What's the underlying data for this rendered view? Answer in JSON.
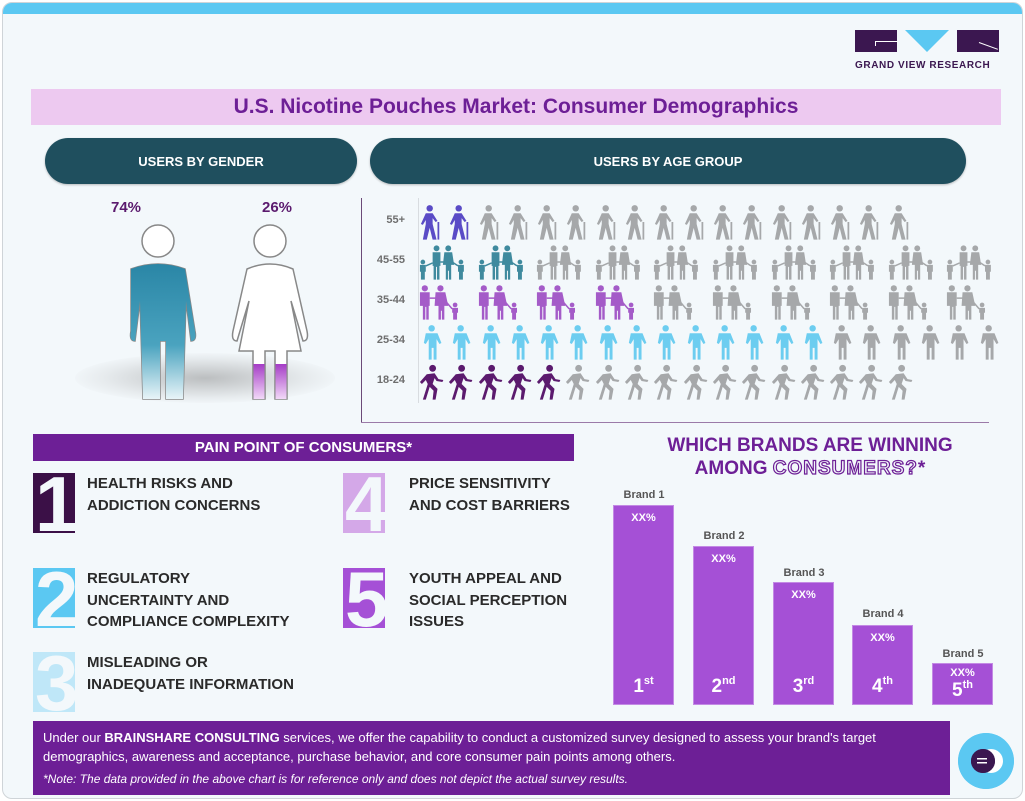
{
  "brand": {
    "name": "GRAND VIEW RESEARCH",
    "logo_icon": "gvr-logo-icon"
  },
  "title": "U.S. Nicotine Pouches Market: Consumer Demographics",
  "gender": {
    "header": "USERS BY GENDER",
    "male": {
      "label": "74%",
      "value": 74,
      "color": "#2b8aa8",
      "icon": "male-figure-icon"
    },
    "female": {
      "label": "26%",
      "value": 26,
      "color": "#b04fd0",
      "icon": "female-figure-icon"
    }
  },
  "age": {
    "header": "USERS BY AGE GROUP",
    "rows": [
      {
        "label": "55+",
        "filled": 2,
        "total": 17,
        "color": "#5a4bc6",
        "icon": "elderly-with-cane-icon"
      },
      {
        "label": "45-55",
        "filled": 2,
        "total": 10,
        "color": "#3f8a9e",
        "icon": "family-icon"
      },
      {
        "label": "35-44",
        "filled": 4,
        "total": 10,
        "color": "#a45bc8",
        "icon": "parents-with-child-icon"
      },
      {
        "label": "25-34",
        "filled": 14,
        "total": 20,
        "color": "#6ccdf0",
        "icon": "couple-icon"
      },
      {
        "label": "18-24",
        "filled": 5,
        "total": 17,
        "color": "#5b1a6e",
        "icon": "running-person-icon"
      }
    ]
  },
  "pain_points": {
    "header": "PAIN POINT OF CONSUMERS*",
    "items": [
      {
        "number": "1",
        "text": "HEALTH RISKS AND ADDICTION CONCERNS",
        "lines": [
          "HEALTH RISKS AND",
          "ADDICTION CONCERNS"
        ],
        "color": "#3b1047"
      },
      {
        "number": "2",
        "text": "REGULATORY UNCERTAINTY AND COMPLIANCE COMPLEXITY",
        "lines": [
          "REGULATORY",
          "UNCERTAINTY AND",
          "COMPLIANCE COMPLEXITY"
        ],
        "color": "#5bc8f2"
      },
      {
        "number": "3",
        "text": "MISLEADING OR INADEQUATE INFORMATION",
        "lines": [
          "MISLEADING OR",
          "INADEQUATE INFORMATION"
        ],
        "color": "#bfe7f8"
      },
      {
        "number": "4",
        "text": "PRICE SENSITIVITY AND COST BARRIERS",
        "lines": [
          "PRICE SENSITIVITY",
          "AND COST BARRIERS"
        ],
        "color": "#d4a8e8"
      },
      {
        "number": "5",
        "text": "YOUTH APPEAL AND SOCIAL PERCEPTION ISSUES",
        "lines": [
          "YOUTH APPEAL AND",
          "SOCIAL PERCEPTION",
          "ISSUES"
        ],
        "color": "#a550d6"
      }
    ]
  },
  "brands": {
    "title_line1": "WHICH BRANDS ARE WINNING",
    "title_line2_a": "AMONG ",
    "title_line2_b": "CONSUMERS?",
    "title_line2_c": "*",
    "bars": [
      {
        "brand": "Brand 1",
        "value_label": "XX%",
        "rank": "1",
        "suffix": "st"
      },
      {
        "brand": "Brand 2",
        "value_label": "XX%",
        "rank": "2",
        "suffix": "nd"
      },
      {
        "brand": "Brand 3",
        "value_label": "XX%",
        "rank": "3",
        "suffix": "rd"
      },
      {
        "brand": "Brand 4",
        "value_label": "XX%",
        "rank": "4",
        "suffix": "th"
      },
      {
        "brand": "Brand 5",
        "value_label": "XX%",
        "rank": "5",
        "suffix": "th"
      }
    ]
  },
  "footer": {
    "text_pre": "Under our ",
    "text_bold": "BRAINSHARE CONSULTING",
    "text_post": " services, we offer the capability to conduct a customized survey designed to assess your brand's target demographics, awareness and acceptance, purchase behavior, and core consumer pain points among others.",
    "note": "*Note: The data provided in the above chart is for reference only and does not depict the actual survey results.",
    "logo_icon": "brainshare-logo-icon"
  },
  "colors": {
    "primary_purple": "#6d1f96",
    "teal_dark": "#1f4f5e",
    "sky_blue": "#5bc8f2",
    "title_bg": "#edc9f0",
    "bar_purple": "#a550d6"
  }
}
